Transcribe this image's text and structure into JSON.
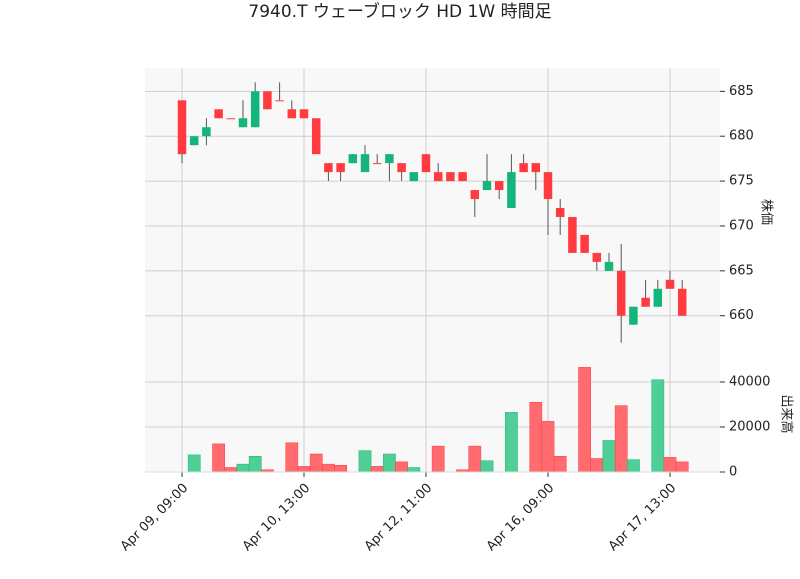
{
  "chart_data": {
    "type": "candlestick",
    "title": "7940.T ウェーブロック HD 1W 時間足",
    "ylabel": "株価",
    "y2label": "出来高",
    "categories": [
      "Apr 09, 09:00",
      null,
      null,
      null,
      null,
      null,
      null,
      null,
      null,
      null,
      "Apr 10, 13:00",
      null,
      null,
      null,
      null,
      null,
      null,
      null,
      null,
      null,
      "Apr 12, 11:00",
      null,
      null,
      null,
      null,
      null,
      null,
      null,
      null,
      null,
      "Apr 16, 09:00",
      null,
      null,
      null,
      null,
      null,
      null,
      null,
      null,
      null,
      "Apr 17, 13:00",
      null
    ],
    "open": [
      684,
      679,
      680,
      683,
      682,
      681,
      681,
      685,
      684,
      683,
      683,
      682,
      677,
      677,
      677,
      676,
      677,
      677,
      677,
      675,
      678,
      676,
      676,
      676,
      674,
      674,
      675,
      672,
      677,
      677,
      676,
      672,
      671,
      669,
      667,
      665,
      665,
      659,
      662,
      661,
      664,
      663
    ],
    "high": [
      684,
      680,
      682,
      683,
      682,
      684,
      686,
      685,
      686,
      684,
      683,
      682,
      677,
      677,
      678,
      679,
      678,
      678,
      677,
      676,
      678,
      677,
      676,
      676,
      674,
      678,
      675,
      678,
      678,
      677,
      676,
      673,
      671,
      669,
      667,
      667,
      668,
      661,
      664,
      664,
      665,
      664
    ],
    "low": [
      677,
      679,
      679,
      682,
      682,
      681,
      681,
      683,
      684,
      682,
      682,
      678,
      675,
      675,
      677,
      676,
      677,
      675,
      675,
      675,
      676,
      675,
      675,
      675,
      671,
      674,
      673,
      672,
      676,
      674,
      669,
      669,
      667,
      667,
      665,
      665,
      657,
      659,
      661,
      661,
      663,
      660
    ],
    "close": [
      678,
      680,
      681,
      682,
      682,
      682,
      685,
      683,
      684,
      682,
      682,
      678,
      676,
      676,
      678,
      678,
      677,
      678,
      676,
      676,
      676,
      675,
      675,
      675,
      673,
      675,
      674,
      676,
      676,
      676,
      673,
      671,
      667,
      667,
      666,
      666,
      660,
      661,
      661,
      663,
      663,
      660
    ],
    "volume": [
      0,
      7600,
      0,
      12500,
      2000,
      3500,
      7000,
      1000,
      0,
      13000,
      2500,
      8000,
      3500,
      3000,
      0,
      9500,
      2500,
      8000,
      4500,
      2000,
      0,
      11500,
      0,
      1000,
      11500,
      5000,
      0,
      26500,
      0,
      31000,
      22500,
      7000,
      0,
      46500,
      6000,
      14000,
      29500,
      5500,
      0,
      41000,
      6500,
      4500
    ],
    "up_color": "#14b57a",
    "down_color": "#ff3b3f",
    "up_volume_color": "#4fcf96",
    "down_volume_color": "#ff6b6e",
    "ylim": [
      655.4,
      687.6
    ],
    "yticks": [
      660,
      665,
      670,
      675,
      680,
      685
    ],
    "y2lim": [
      0,
      51100
    ],
    "y2ticks": [
      0,
      20000,
      40000
    ],
    "grid": true
  }
}
